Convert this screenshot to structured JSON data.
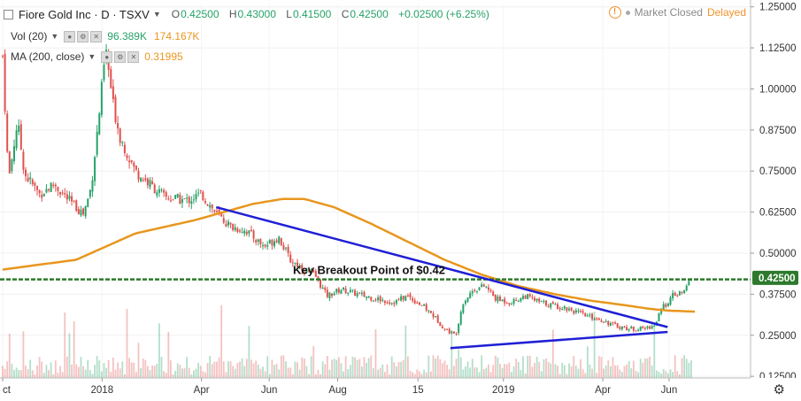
{
  "legend": {
    "symbol": "Fiore Gold Inc · D · TSXV",
    "ohlc": {
      "o_label": "O",
      "o": "0.42500",
      "h_label": "H",
      "h": "0.43000",
      "l_label": "L",
      "l": "0.41500",
      "c_label": "C",
      "c": "0.42500",
      "change": "+0.02500 (+6.25%)"
    },
    "volume": {
      "label": "Vol (20)",
      "v1": "96.389K",
      "v2": "174.167K"
    },
    "ma": {
      "label": "MA (200, close)",
      "value": "0.31995"
    }
  },
  "status": {
    "market": "Market Closed",
    "delayed": "Delayed"
  },
  "colors": {
    "up": "#26a269",
    "down": "#e0514d",
    "ma": "#e8961e",
    "trend": "#1f1fd6",
    "support": "#2d7a2d",
    "price_tag": "#2d7a2d"
  },
  "chart_data": {
    "type": "candlestick",
    "title": "Fiore Gold Inc · D · TSXV",
    "annotation": "Key Breakout Point of $0.42",
    "y_ticks": [
      "1.25000",
      "1.12500",
      "1.00000",
      "0.87500",
      "0.75000",
      "0.62500",
      "0.50000",
      "0.37500",
      "0.25000",
      "0.12500"
    ],
    "y_tick_values": [
      1.25,
      1.125,
      1.0,
      0.875,
      0.75,
      0.625,
      0.5,
      0.375,
      0.25,
      0.125
    ],
    "ylim": [
      0.12,
      1.26
    ],
    "x_ticks": [
      {
        "label": "ct",
        "t": 0
      },
      {
        "label": "2018",
        "t": 0.135
      },
      {
        "label": "Apr",
        "t": 0.27
      },
      {
        "label": "Jun",
        "t": 0.362
      },
      {
        "label": "Aug",
        "t": 0.455
      },
      {
        "label": "15",
        "t": 0.564
      },
      {
        "label": "2019",
        "t": 0.68
      },
      {
        "label": "Apr",
        "t": 0.815
      },
      {
        "label": "Jun",
        "t": 0.905
      }
    ],
    "last_price": "0.42500",
    "price_waypoints": [
      [
        0,
        1.1
      ],
      [
        0.008,
        0.72
      ],
      [
        0.02,
        0.9
      ],
      [
        0.03,
        0.74
      ],
      [
        0.05,
        0.68
      ],
      [
        0.07,
        0.71
      ],
      [
        0.09,
        0.66
      ],
      [
        0.11,
        0.62
      ],
      [
        0.12,
        0.7
      ],
      [
        0.13,
        0.9
      ],
      [
        0.14,
        1.12
      ],
      [
        0.15,
        0.95
      ],
      [
        0.16,
        0.85
      ],
      [
        0.18,
        0.75
      ],
      [
        0.2,
        0.71
      ],
      [
        0.22,
        0.67
      ],
      [
        0.25,
        0.66
      ],
      [
        0.27,
        0.68
      ],
      [
        0.29,
        0.62
      ],
      [
        0.31,
        0.58
      ],
      [
        0.33,
        0.57
      ],
      [
        0.355,
        0.52
      ],
      [
        0.375,
        0.55
      ],
      [
        0.39,
        0.48
      ],
      [
        0.41,
        0.45
      ],
      [
        0.425,
        0.43
      ],
      [
        0.44,
        0.37
      ],
      [
        0.46,
        0.39
      ],
      [
        0.49,
        0.37
      ],
      [
        0.51,
        0.36
      ],
      [
        0.53,
        0.35
      ],
      [
        0.55,
        0.37
      ],
      [
        0.57,
        0.34
      ],
      [
        0.585,
        0.31
      ],
      [
        0.6,
        0.27
      ],
      [
        0.615,
        0.25
      ],
      [
        0.625,
        0.35
      ],
      [
        0.64,
        0.39
      ],
      [
        0.655,
        0.4
      ],
      [
        0.67,
        0.36
      ],
      [
        0.69,
        0.35
      ],
      [
        0.71,
        0.37
      ],
      [
        0.73,
        0.35
      ],
      [
        0.75,
        0.34
      ],
      [
        0.77,
        0.33
      ],
      [
        0.79,
        0.31
      ],
      [
        0.81,
        0.3
      ],
      [
        0.83,
        0.28
      ],
      [
        0.85,
        0.27
      ],
      [
        0.87,
        0.27
      ],
      [
        0.885,
        0.28
      ],
      [
        0.895,
        0.33
      ],
      [
        0.91,
        0.37
      ],
      [
        0.925,
        0.38
      ],
      [
        0.935,
        0.425
      ]
    ],
    "ma_series": [
      [
        0,
        0.45
      ],
      [
        0.05,
        0.465
      ],
      [
        0.1,
        0.48
      ],
      [
        0.14,
        0.52
      ],
      [
        0.18,
        0.56
      ],
      [
        0.22,
        0.58
      ],
      [
        0.26,
        0.6
      ],
      [
        0.3,
        0.625
      ],
      [
        0.34,
        0.65
      ],
      [
        0.38,
        0.665
      ],
      [
        0.41,
        0.665
      ],
      [
        0.45,
        0.64
      ],
      [
        0.5,
        0.59
      ],
      [
        0.55,
        0.535
      ],
      [
        0.6,
        0.48
      ],
      [
        0.65,
        0.435
      ],
      [
        0.7,
        0.4
      ],
      [
        0.75,
        0.375
      ],
      [
        0.8,
        0.355
      ],
      [
        0.85,
        0.34
      ],
      [
        0.88,
        0.33
      ],
      [
        0.905,
        0.325
      ],
      [
        0.94,
        0.322
      ]
    ],
    "trendlines": [
      {
        "name": "resistance",
        "from": [
          0.29,
          0.64
        ],
        "to": [
          0.903,
          0.275
        ]
      },
      {
        "name": "support",
        "from": [
          0.608,
          0.211
        ],
        "to": [
          0.903,
          0.26
        ]
      }
    ],
    "support_level": 0.42
  }
}
